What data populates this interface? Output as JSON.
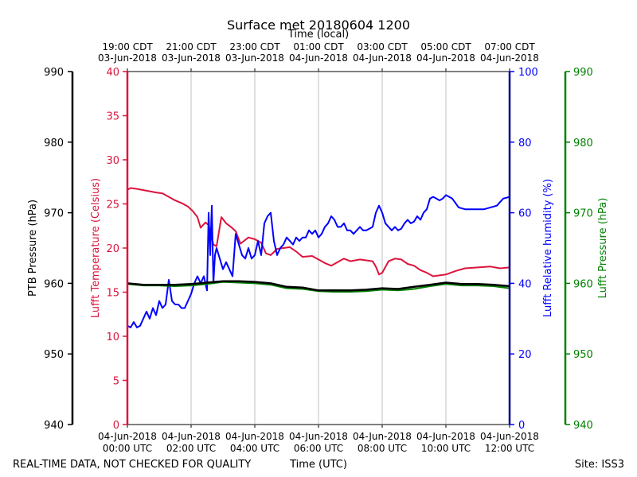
{
  "chart_data": {
    "type": "line",
    "title": "Surface met 20180604 1200",
    "top_axis_label": "Time (local)",
    "bottom_axis_label": "Time (UTC)",
    "footer_left": "REAL-TIME DATA, NOT CHECKED FOR QUALITY",
    "footer_right": "Site: ISS3",
    "x_range_hours": [
      0,
      12
    ],
    "grid": true,
    "top_ticks": [
      {
        "h": 0,
        "line1": "19:00 CDT",
        "line2": "03-Jun-2018"
      },
      {
        "h": 2,
        "line1": "21:00 CDT",
        "line2": "03-Jun-2018"
      },
      {
        "h": 4,
        "line1": "23:00 CDT",
        "line2": "03-Jun-2018"
      },
      {
        "h": 6,
        "line1": "01:00 CDT",
        "line2": "04-Jun-2018"
      },
      {
        "h": 8,
        "line1": "03:00 CDT",
        "line2": "04-Jun-2018"
      },
      {
        "h": 10,
        "line1": "05:00 CDT",
        "line2": "04-Jun-2018"
      },
      {
        "h": 12,
        "line1": "07:00 CDT",
        "line2": "04-Jun-2018"
      }
    ],
    "bottom_ticks": [
      {
        "h": 0,
        "line1": "04-Jun-2018",
        "line2": "00:00 UTC"
      },
      {
        "h": 2,
        "line1": "04-Jun-2018",
        "line2": "02:00 UTC"
      },
      {
        "h": 4,
        "line1": "04-Jun-2018",
        "line2": "04:00 UTC"
      },
      {
        "h": 6,
        "line1": "04-Jun-2018",
        "line2": "06:00 UTC"
      },
      {
        "h": 8,
        "line1": "04-Jun-2018",
        "line2": "08:00 UTC"
      },
      {
        "h": 10,
        "line1": "04-Jun-2018",
        "line2": "10:00 UTC"
      },
      {
        "h": 12,
        "line1": "04-Jun-2018",
        "line2": "12:00 UTC"
      }
    ],
    "axes": {
      "ptb": {
        "label": "PTB Pressure (hPa)",
        "ylim": [
          940,
          990
        ],
        "ticks": [
          940,
          950,
          960,
          970,
          980,
          990
        ],
        "color": "#000000"
      },
      "temp": {
        "label": "Lufft Temperature (Celsius)",
        "ylim": [
          0,
          40
        ],
        "ticks": [
          0,
          5,
          10,
          15,
          20,
          25,
          30,
          35,
          40
        ],
        "color": "#dc143c"
      },
      "rh": {
        "label": "Lufft Relative humidity (%)",
        "ylim": [
          0,
          100
        ],
        "ticks": [
          0,
          20,
          40,
          60,
          80,
          100
        ],
        "color": "#0000ff"
      },
      "lufft_p": {
        "label": "Lufft Pressure (hPa)",
        "ylim": [
          940,
          990
        ],
        "ticks": [
          940,
          950,
          960,
          970,
          980,
          990
        ],
        "color": "#008000"
      }
    },
    "series": [
      {
        "name": "Lufft Temperature",
        "axis": "temp",
        "color": "#dc143c",
        "x": [
          0,
          0.1,
          0.3,
          0.6,
          0.9,
          1.1,
          1.3,
          1.5,
          1.7,
          1.9,
          2.05,
          2.2,
          2.3,
          2.45,
          2.55,
          2.7,
          2.8,
          2.95,
          3.1,
          3.25,
          3.4,
          3.55,
          3.8,
          4.0,
          4.2,
          4.35,
          4.5,
          4.7,
          4.9,
          5.1,
          5.3,
          5.5,
          5.8,
          6.0,
          6.2,
          6.4,
          6.6,
          6.8,
          7.0,
          7.3,
          7.5,
          7.7,
          7.8,
          7.9,
          8.0,
          8.2,
          8.4,
          8.6,
          8.8,
          9.0,
          9.2,
          9.4,
          9.6,
          9.8,
          10.0,
          10.3,
          10.6,
          11.0,
          11.4,
          11.7,
          12.0
        ],
        "y": [
          26.6,
          26.8,
          26.7,
          26.5,
          26.3,
          26.2,
          25.8,
          25.4,
          25.1,
          24.7,
          24.2,
          23.5,
          22.3,
          22.9,
          22.6,
          20.4,
          20.2,
          23.5,
          22.8,
          22.4,
          21.9,
          20.5,
          21.2,
          21.0,
          20.6,
          19.4,
          19.2,
          19.9,
          20.0,
          20.1,
          19.6,
          19.0,
          19.1,
          18.7,
          18.3,
          18.0,
          18.4,
          18.8,
          18.5,
          18.7,
          18.6,
          18.5,
          17.9,
          17.0,
          17.2,
          18.5,
          18.8,
          18.7,
          18.2,
          18.0,
          17.5,
          17.2,
          16.8,
          16.9,
          17.0,
          17.4,
          17.7,
          17.8,
          17.9,
          17.7,
          17.8
        ]
      },
      {
        "name": "Lufft Relative humidity",
        "axis": "rh",
        "color": "#0000ff",
        "x": [
          0,
          0.1,
          0.2,
          0.3,
          0.4,
          0.5,
          0.6,
          0.7,
          0.8,
          0.9,
          1.0,
          1.1,
          1.2,
          1.3,
          1.4,
          1.5,
          1.6,
          1.7,
          1.8,
          1.9,
          2.0,
          2.1,
          2.2,
          2.3,
          2.4,
          2.5,
          2.55,
          2.6,
          2.65,
          2.7,
          2.75,
          2.8,
          2.9,
          3.0,
          3.1,
          3.2,
          3.3,
          3.4,
          3.5,
          3.6,
          3.7,
          3.8,
          3.9,
          4.0,
          4.1,
          4.2,
          4.3,
          4.4,
          4.5,
          4.6,
          4.7,
          4.8,
          4.9,
          5.0,
          5.1,
          5.2,
          5.3,
          5.4,
          5.5,
          5.6,
          5.7,
          5.8,
          5.9,
          6.0,
          6.1,
          6.2,
          6.3,
          6.4,
          6.5,
          6.6,
          6.7,
          6.8,
          6.9,
          7.0,
          7.1,
          7.2,
          7.3,
          7.4,
          7.5,
          7.6,
          7.7,
          7.8,
          7.9,
          8.0,
          8.1,
          8.2,
          8.3,
          8.4,
          8.5,
          8.6,
          8.7,
          8.8,
          8.9,
          9.0,
          9.1,
          9.2,
          9.3,
          9.4,
          9.5,
          9.6,
          9.7,
          9.8,
          9.9,
          10.0,
          10.2,
          10.4,
          10.6,
          10.8,
          11.0,
          11.2,
          11.4,
          11.6,
          11.8,
          12.0
        ],
        "y": [
          28,
          27.5,
          29,
          27.5,
          28,
          30,
          32,
          30,
          33,
          31,
          35,
          33,
          34,
          41,
          35,
          34,
          34,
          33,
          33,
          35,
          37,
          40,
          42,
          40,
          42,
          38,
          60,
          48,
          62,
          40,
          48,
          50,
          47,
          44,
          46,
          44,
          42,
          54,
          51,
          48,
          47,
          50,
          47,
          48,
          52,
          48,
          57,
          59,
          60,
          52,
          48,
          50,
          51,
          53,
          52,
          51,
          53,
          52,
          53,
          53,
          55,
          54,
          55,
          53,
          54,
          56,
          57,
          59,
          58,
          56,
          56,
          57,
          55,
          55,
          54,
          55,
          56,
          55,
          55,
          55.5,
          56,
          60,
          62,
          60,
          57,
          56,
          55,
          56,
          55,
          55.5,
          57,
          58,
          57,
          57.5,
          59,
          58,
          60,
          61,
          64,
          64.5,
          64,
          63.5,
          64,
          65,
          64,
          61.5,
          61,
          61,
          61,
          61,
          61.5,
          62,
          64,
          64.5
        ]
      },
      {
        "name": "Lufft Pressure",
        "axis": "lufft_p",
        "color": "#008000",
        "x": [
          0,
          0.5,
          1.0,
          1.5,
          2.0,
          2.5,
          3.0,
          3.5,
          4.0,
          4.5,
          5.0,
          5.5,
          6.0,
          6.5,
          7.0,
          7.5,
          8.0,
          8.5,
          9.0,
          9.5,
          10.0,
          10.5,
          11.0,
          11.5,
          12.0
        ],
        "y": [
          959.9,
          959.7,
          959.7,
          959.6,
          959.7,
          959.9,
          960.2,
          960.1,
          960.0,
          959.8,
          959.3,
          959.2,
          958.9,
          958.8,
          958.8,
          958.9,
          959.1,
          959.0,
          959.2,
          959.6,
          959.9,
          959.7,
          959.7,
          959.6,
          959.3
        ]
      },
      {
        "name": "PTB Pressure",
        "axis": "ptb",
        "color": "#000000",
        "x": [
          0,
          0.5,
          1.0,
          1.5,
          2.0,
          2.5,
          3.0,
          3.5,
          4.0,
          4.5,
          5.0,
          5.5,
          6.0,
          6.5,
          7.0,
          7.5,
          8.0,
          8.5,
          9.0,
          9.5,
          10.0,
          10.5,
          11.0,
          11.5,
          12.0
        ],
        "y": [
          960.0,
          959.8,
          959.8,
          959.8,
          959.9,
          960.1,
          960.3,
          960.3,
          960.2,
          960.0,
          959.5,
          959.4,
          959.0,
          959.0,
          959.0,
          959.1,
          959.3,
          959.2,
          959.5,
          959.8,
          960.1,
          959.9,
          959.9,
          959.8,
          959.6
        ]
      }
    ]
  }
}
